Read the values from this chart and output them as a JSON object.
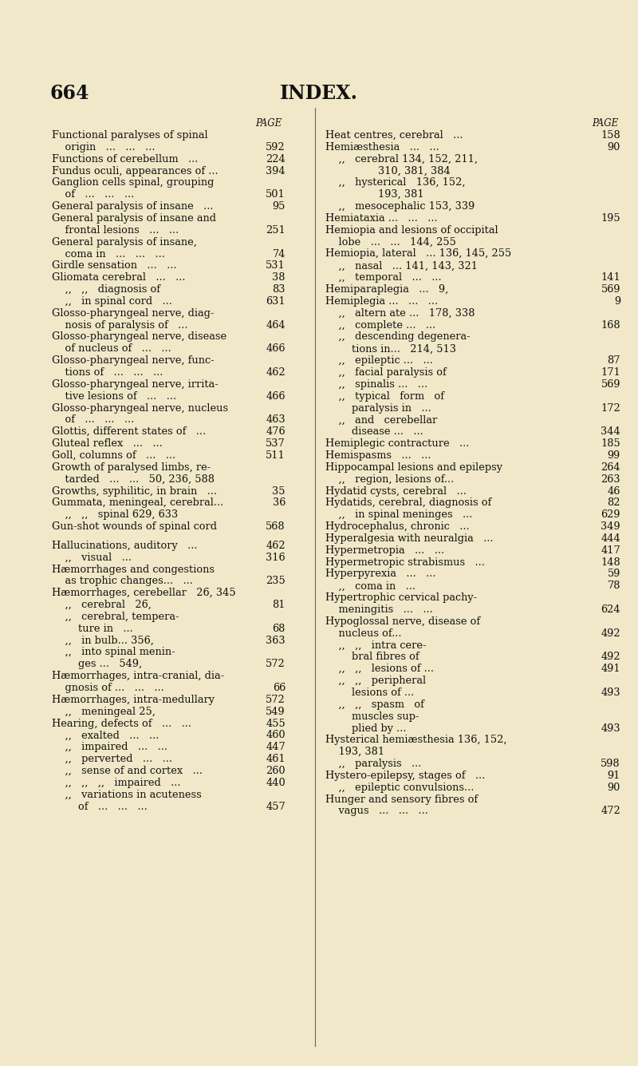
{
  "bg_color": "#f0e8c8",
  "page_num": "664",
  "title": "INDEX.",
  "left_entries": [
    {
      "lines": [
        "Functional paralyses of spinal",
        "    origin   ...   ...   ..."
      ],
      "page": "592"
    },
    {
      "lines": [
        "Functions of cerebellum   ..."
      ],
      "page": "224"
    },
    {
      "lines": [
        "Fundus oculi, appearances of ..."
      ],
      "page": "394"
    },
    {
      "lines": [
        "Ganglion cells spinal, grouping",
        "    of   ...   ...   ..."
      ],
      "page": "501"
    },
    {
      "lines": [
        "General paralysis of insane   ..."
      ],
      "page": "95"
    },
    {
      "lines": [
        "General paralysis of insane and",
        "    frontal lesions   ...   ..."
      ],
      "page": "251"
    },
    {
      "lines": [
        "General paralysis of insane,",
        "    coma in   ...   ...   ..."
      ],
      "page": "74"
    },
    {
      "lines": [
        "Girdle sensation   ...   ..."
      ],
      "page": "531"
    },
    {
      "lines": [
        "Gliomata cerebral   ...   ..."
      ],
      "page": "38"
    },
    {
      "lines": [
        "    ,,   ,,   diagnosis of"
      ],
      "page": "83"
    },
    {
      "lines": [
        "    ,,   in spinal cord   ..."
      ],
      "page": "631"
    },
    {
      "lines": [
        "Glosso-pharyngeal nerve, diag-",
        "    nosis of paralysis of   ..."
      ],
      "page": "464"
    },
    {
      "lines": [
        "Glosso-pharyngeal nerve, disease",
        "    of nucleus of   ...   ..."
      ],
      "page": "466"
    },
    {
      "lines": [
        "Glosso-pharyngeal nerve, func-",
        "    tions of   ...   ...   ..."
      ],
      "page": "462"
    },
    {
      "lines": [
        "Glosso-pharyngeal nerve, irrita-",
        "    tive lesions of   ...   ..."
      ],
      "page": "466"
    },
    {
      "lines": [
        "Glosso-pharyngeal nerve, nucleus",
        "    of   ...   ...   ..."
      ],
      "page": "463"
    },
    {
      "lines": [
        "Glottis, different states of   ..."
      ],
      "page": "476"
    },
    {
      "lines": [
        "Gluteal reflex   ...   ..."
      ],
      "page": "537"
    },
    {
      "lines": [
        "Goll, columns of   ...   ..."
      ],
      "page": "511"
    },
    {
      "lines": [
        "Growth of paralysed limbs, re-",
        "    tarded   ...   ...   50, 236, 588"
      ],
      "page": ""
    },
    {
      "lines": [
        "Growths, syphilitic, in brain   ..."
      ],
      "page": "35"
    },
    {
      "lines": [
        "Gummata, meningeal, cerebral..."
      ],
      "page": "36"
    },
    {
      "lines": [
        "    ,,   ,,   spinal 629, 633"
      ],
      "page": ""
    },
    {
      "lines": [
        "Gun-shot wounds of spinal cord"
      ],
      "page": "568"
    },
    {
      "lines": [
        ""
      ],
      "page": ""
    },
    {
      "lines": [
        "Hallucinations, auditory   ..."
      ],
      "page": "462"
    },
    {
      "lines": [
        "    ,,   visual   ..."
      ],
      "page": "316"
    },
    {
      "lines": [
        "Hæmorrhages and congestions",
        "    as trophic changes...   ..."
      ],
      "page": "235"
    },
    {
      "lines": [
        "Hæmorrhages, cerebellar   26, 345"
      ],
      "page": ""
    },
    {
      "lines": [
        "    ,,   cerebral   26,"
      ],
      "page": "81"
    },
    {
      "lines": [
        "    ,,   cerebral, tempera-",
        "        ture in   ..."
      ],
      "page": "68"
    },
    {
      "lines": [
        "    ,,   in bulb... 356,"
      ],
      "page": "363"
    },
    {
      "lines": [
        "    ,,   into spinal menin-",
        "        ges ...   549,"
      ],
      "page": "572"
    },
    {
      "lines": [
        "Hæmorrhages, intra-cranial, dia-",
        "    gnosis of ...   ...   ..."
      ],
      "page": "66"
    },
    {
      "lines": [
        "Hæmorrhages, intra-medullary"
      ],
      "page": "572"
    },
    {
      "lines": [
        "    ,,   meningeal 25,"
      ],
      "page": "549"
    },
    {
      "lines": [
        "Hearing, defects of   ...   ..."
      ],
      "page": "455"
    },
    {
      "lines": [
        "    ,,   exalted   ...   ..."
      ],
      "page": "460"
    },
    {
      "lines": [
        "    ,,   impaired   ...   ..."
      ],
      "page": "447"
    },
    {
      "lines": [
        "    ,,   perverted   ...   ..."
      ],
      "page": "461"
    },
    {
      "lines": [
        "    ,,   sense of and cortex   ..."
      ],
      "page": "260"
    },
    {
      "lines": [
        "    ,,   ,,   ,,   impaired   ..."
      ],
      "page": "440"
    },
    {
      "lines": [
        "    ,,   variations in acuteness",
        "        of   ...   ...   ..."
      ],
      "page": "457"
    }
  ],
  "right_entries": [
    {
      "lines": [
        "Heat centres, cerebral   ..."
      ],
      "page": "158"
    },
    {
      "lines": [
        "Hemiæsthesia   ...   ..."
      ],
      "page": "90"
    },
    {
      "lines": [
        "    ,,   cerebral 134, 152, 211,",
        "                310, 381, 384"
      ],
      "page": ""
    },
    {
      "lines": [
        "    ,,   hysterical   136, 152,",
        "                193, 381"
      ],
      "page": ""
    },
    {
      "lines": [
        "    ,,   mesocephalic 153, 339"
      ],
      "page": ""
    },
    {
      "lines": [
        "Hemiataxia ...   ...   ..."
      ],
      "page": "195"
    },
    {
      "lines": [
        "Hemiopia and lesions of occipital",
        "    lobe   ...   ...   144, 255"
      ],
      "page": ""
    },
    {
      "lines": [
        "Hemiopia, lateral   ... 136, 145, 255"
      ],
      "page": ""
    },
    {
      "lines": [
        "    ,,   nasal   ... 141, 143, 321"
      ],
      "page": ""
    },
    {
      "lines": [
        "    ,,   temporal   ...   ..."
      ],
      "page": "141"
    },
    {
      "lines": [
        "Hemiparaplegia   ...   9,"
      ],
      "page": "569"
    },
    {
      "lines": [
        "Hemiplegia ...   ...   ..."
      ],
      "page": "9"
    },
    {
      "lines": [
        "    ,,   altern ate ...   178, 338"
      ],
      "page": ""
    },
    {
      "lines": [
        "    ,,   complete ...   ..."
      ],
      "page": "168"
    },
    {
      "lines": [
        "    ,,   descending degenera-",
        "        tions in...   214, 513"
      ],
      "page": ""
    },
    {
      "lines": [
        "    ,,   epileptic ...   ..."
      ],
      "page": "87"
    },
    {
      "lines": [
        "    ,,   facial paralysis of"
      ],
      "page": "171"
    },
    {
      "lines": [
        "    ,,   spinalis ...   ..."
      ],
      "page": "569"
    },
    {
      "lines": [
        "    ,,   typical   form   of",
        "        paralysis in   ..."
      ],
      "page": "172"
    },
    {
      "lines": [
        "    ,,   and   cerebellar",
        "        disease ...   ..."
      ],
      "page": "344"
    },
    {
      "lines": [
        "Hemiplegic contracture   ..."
      ],
      "page": "185"
    },
    {
      "lines": [
        "Hemispasms   ...   ..."
      ],
      "page": "99"
    },
    {
      "lines": [
        "Hippocampal lesions and epilepsy"
      ],
      "page": "264"
    },
    {
      "lines": [
        "    ,,   region, lesions of..."
      ],
      "page": "263"
    },
    {
      "lines": [
        "Hydatid cysts, cerebral   ..."
      ],
      "page": "46"
    },
    {
      "lines": [
        "Hydatids, cerebral, diagnosis of"
      ],
      "page": "82"
    },
    {
      "lines": [
        "    ,,   in spinal meninges   ..."
      ],
      "page": "629"
    },
    {
      "lines": [
        "Hydrocephalus, chronic   ..."
      ],
      "page": "349"
    },
    {
      "lines": [
        "Hyperalgesia with neuralgia   ..."
      ],
      "page": "444"
    },
    {
      "lines": [
        "Hypermetropia   ...   ..."
      ],
      "page": "417"
    },
    {
      "lines": [
        "Hypermetropic strabismus   ..."
      ],
      "page": "148"
    },
    {
      "lines": [
        "Hyperpyrexia   ...   ..."
      ],
      "page": "59"
    },
    {
      "lines": [
        "    ,,   coma in   ..."
      ],
      "page": "78"
    },
    {
      "lines": [
        "Hypertrophic cervical pachy-",
        "    meningitis   ...   ..."
      ],
      "page": "624"
    },
    {
      "lines": [
        "Hypoglossal nerve, disease of",
        "    nucleus of..."
      ],
      "page": "492"
    },
    {
      "lines": [
        "    ,,   ,,   intra cere-",
        "        bral fibres of"
      ],
      "page": "492"
    },
    {
      "lines": [
        "    ,,   ,,   lesions of ..."
      ],
      "page": "491"
    },
    {
      "lines": [
        "    ,,   ,,   peripheral",
        "        lesions of ..."
      ],
      "page": "493"
    },
    {
      "lines": [
        "    ,,   ,,   spasm   of",
        "        muscles sup-",
        "        plied by ..."
      ],
      "page": "493"
    },
    {
      "lines": [
        "Hysterical hemiæsthesia 136, 152,",
        "    193, 381"
      ],
      "page": ""
    },
    {
      "lines": [
        "    ,,   paralysis   ..."
      ],
      "page": "598"
    },
    {
      "lines": [
        "Hystero-epilepsy, stages of   ..."
      ],
      "page": "91"
    },
    {
      "lines": [
        "    ,,   epileptic convulsions..."
      ],
      "page": "90"
    },
    {
      "lines": [
        "Hunger and sensory fibres of",
        "    vagus   ...   ...   ..."
      ],
      "page": "472"
    }
  ]
}
